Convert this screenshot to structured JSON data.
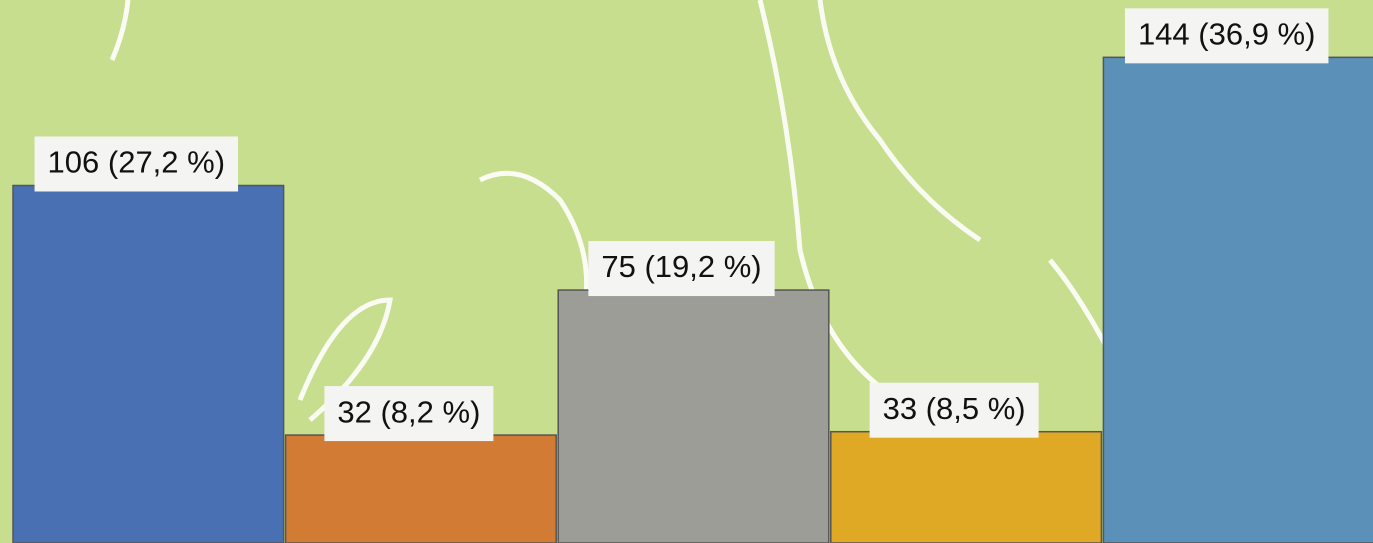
{
  "chart_data": {
    "type": "bar",
    "values": [
      106,
      32,
      75,
      33,
      144
    ],
    "value_labels": [
      "106 (27,2 %)",
      "32 (8,2 %)",
      "75 (19,2 %)",
      "33 (8,5 %)",
      "144 (36,9 %)"
    ],
    "colors": [
      "#4a70b4",
      "#d27b34",
      "#9c9d96",
      "#dfa925",
      "#5b90b8"
    ],
    "ylim": [
      0,
      161
    ]
  }
}
